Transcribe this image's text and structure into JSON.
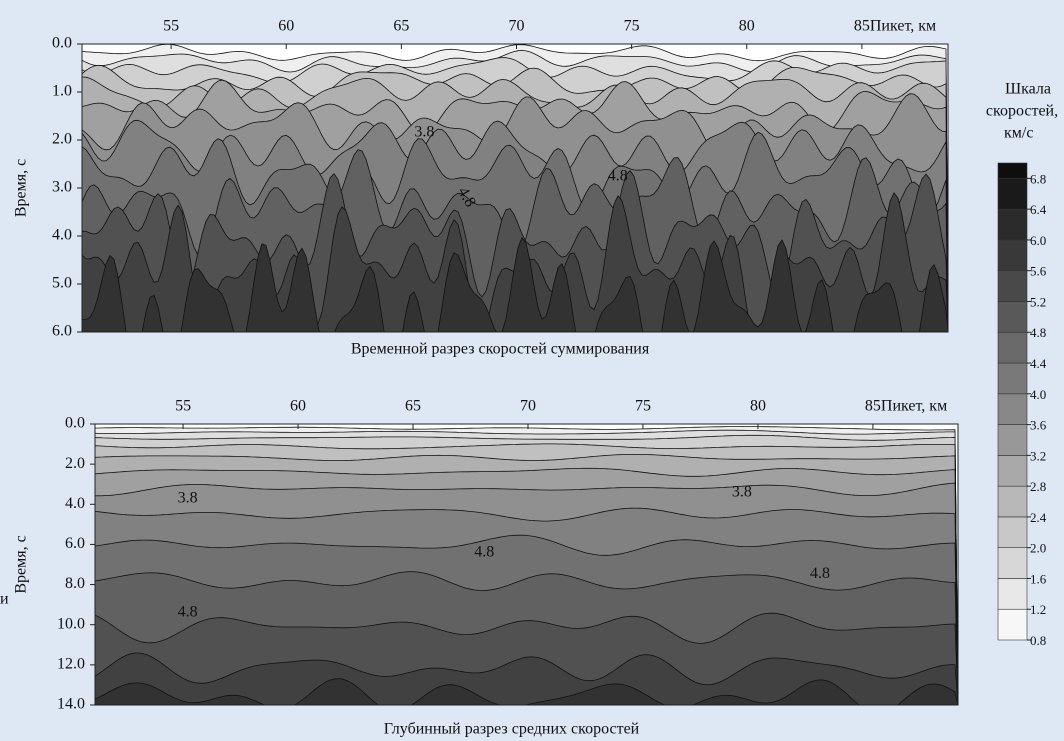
{
  "chart_data": [
    {
      "type": "contour",
      "title": "Временной разрез скоростей суммирования",
      "xlabel": "Пикет, км",
      "ylabel": "Время, с",
      "xlim": [
        51.13,
        88.74
      ],
      "ylim": [
        0,
        6
      ],
      "xticks": [
        55,
        60,
        65,
        70,
        75,
        80,
        85
      ],
      "yticks": [
        {
          "value": 0,
          "label": "0.0"
        },
        {
          "value": 1,
          "label": "1.0"
        },
        {
          "value": 2,
          "label": "2.0"
        },
        {
          "value": 3,
          "label": "3.0"
        },
        {
          "value": 4,
          "label": "4.0"
        },
        {
          "value": 5,
          "label": "5.0"
        },
        {
          "value": 6,
          "label": "6.0"
        }
      ],
      "annotations": [
        {
          "text": "3.8",
          "x": 66.0,
          "y": 1.85
        },
        {
          "text": "4.8",
          "x": 74.4,
          "y": 2.77
        },
        {
          "text": "4.8",
          "x": 67.8,
          "y": 3.2
        }
      ]
    },
    {
      "type": "contour",
      "title": "Глубинный разрез средних скоростей",
      "xlabel": "Пикет, км",
      "ylabel": "Время, с",
      "xlim": [
        51.17,
        88.7
      ],
      "ylim": [
        0,
        14
      ],
      "xticks": [
        55,
        60,
        65,
        70,
        75,
        80,
        85
      ],
      "yticks": [
        {
          "value": 0,
          "label": "0.0"
        },
        {
          "value": 2,
          "label": "2.0"
        },
        {
          "value": 4,
          "label": "4.0"
        },
        {
          "value": 6,
          "label": "6.0"
        },
        {
          "value": 8,
          "label": "8.0"
        },
        {
          "value": 10,
          "label": "10.0"
        },
        {
          "value": 12,
          "label": "12.0"
        },
        {
          "value": 14,
          "label": "14.0"
        }
      ],
      "annotations": [
        {
          "text": "3.8",
          "x": 55.2,
          "y": 3.74
        },
        {
          "text": "3.8",
          "x": 79.3,
          "y": 3.44
        },
        {
          "text": "4.8",
          "x": 68.1,
          "y": 6.43
        },
        {
          "text": "4.8",
          "x": 82.7,
          "y": 7.5
        },
        {
          "text": "4.8",
          "x": 55.2,
          "y": 9.4
        }
      ]
    },
    {
      "type": "colorbar",
      "title": [
        "Шкала",
        "скоростей,",
        "км/с"
      ],
      "lim": [
        0.8,
        7.0
      ],
      "colormap": [
        "#ffffff",
        "#0a0a0a"
      ],
      "ticks": [
        0.8,
        1.2,
        1.6,
        {
          "value": 2,
          "label": "2.0"
        },
        2.4,
        2.8,
        3.2,
        3.6,
        {
          "value": 4,
          "label": "4.0"
        },
        4.4,
        4.8,
        5.2,
        5.6,
        {
          "value": 6,
          "label": "6.0"
        },
        6.4,
        6.8
      ]
    }
  ],
  "fragment": "и"
}
